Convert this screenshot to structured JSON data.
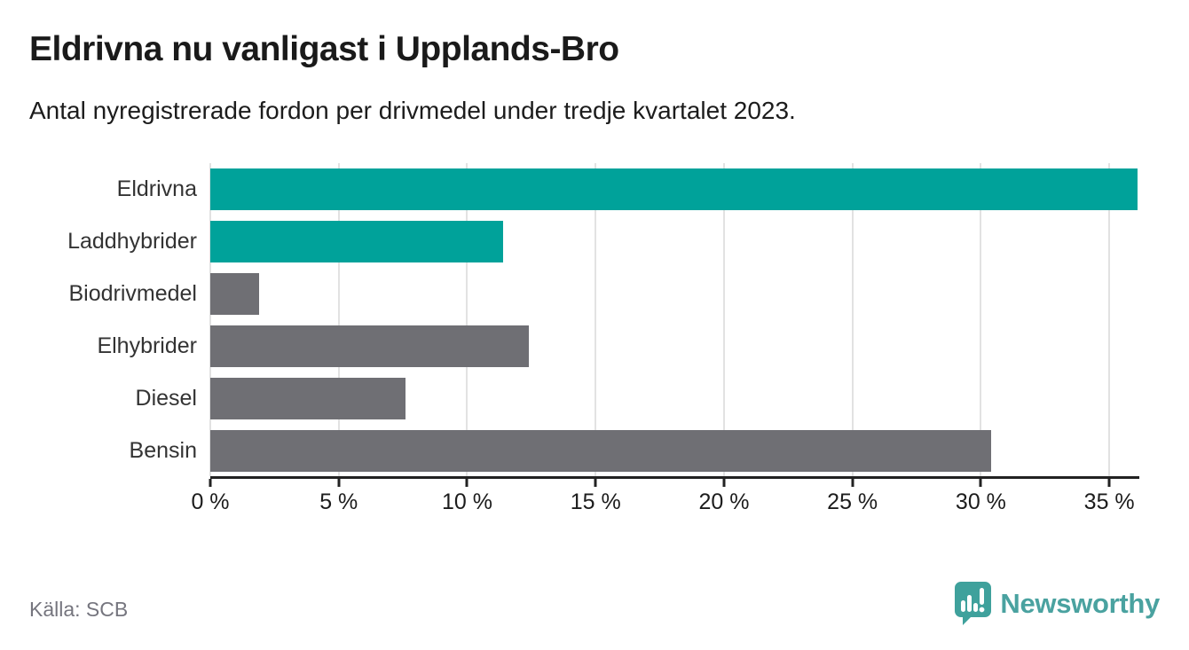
{
  "header": {
    "title": "Eldrivna nu vanligast i Upplands-Bro",
    "subtitle": "Antal nyregistrerade fordon per drivmedel under tredje kvartalet 2023."
  },
  "chart_data": {
    "type": "bar",
    "orientation": "horizontal",
    "title": "Eldrivna nu vanligast i Upplands-Bro",
    "subtitle": "Antal nyregistrerade fordon per drivmedel under tredje kvartalet 2023.",
    "categories": [
      "Eldrivna",
      "Laddhybrider",
      "Biodrivmedel",
      "Elhybrider",
      "Diesel",
      "Bensin"
    ],
    "values": [
      36.1,
      11.4,
      1.9,
      12.4,
      7.6,
      30.4
    ],
    "unit": "%",
    "bar_colors": [
      "#00a29a",
      "#00a29a",
      "#6f6f74",
      "#6f6f74",
      "#6f6f74",
      "#6f6f74"
    ],
    "xlim": [
      0,
      36.1
    ],
    "x_ticks": [
      0,
      5,
      10,
      15,
      20,
      25,
      30,
      35
    ],
    "x_tick_labels": [
      "0 %",
      "5 %",
      "10 %",
      "15 %",
      "20 %",
      "25 %",
      "30 %",
      "35 %"
    ],
    "grid": "vertical",
    "legend": "none"
  },
  "colors": {
    "accent": "#00a29a",
    "muted_bar": "#6f6f74",
    "gridline": "#e2e2e2",
    "axis": "#222222",
    "brand": "#4aa2a0",
    "brand_bubble": "#3fa19c"
  },
  "footer": {
    "source": "Källa: SCB",
    "brand": "Newsworthy"
  }
}
